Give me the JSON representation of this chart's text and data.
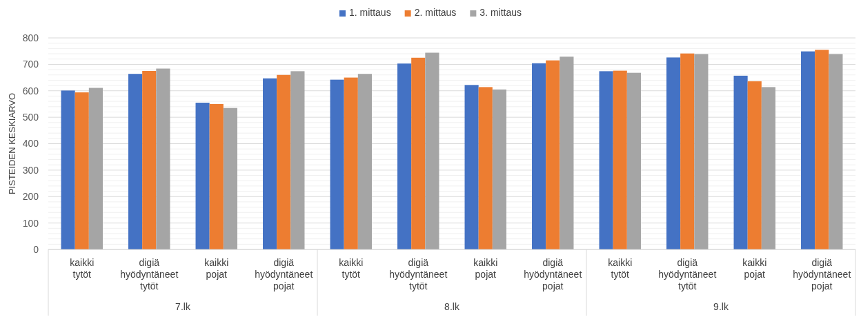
{
  "chart_data": {
    "type": "bar",
    "ylabel": "PISTEIDEN KESKIARVO",
    "categories": [
      "kaikki tytöt",
      "digiä hyödyntäneet tytöt",
      "kaikki pojat",
      "digiä hyödyntäneet pojat",
      "kaikki tytöt",
      "digiä hyödyntäneet tytöt",
      "kaikki pojat",
      "digiä hyödyntäneet pojat",
      "kaikki tytöt",
      "digiä hyödyntäneet tytöt",
      "kaikki pojat",
      "digiä hyödyntäneet pojat"
    ],
    "series": [
      {
        "name": "1. mittaus",
        "color": "#4472c4",
        "values": [
          601,
          664,
          555,
          647,
          642,
          703,
          622,
          704,
          674,
          726,
          657,
          749
        ]
      },
      {
        "name": "2. mittaus",
        "color": "#ed7d31",
        "values": [
          594,
          675,
          550,
          660,
          650,
          725,
          614,
          715,
          676,
          741,
          636,
          755
        ]
      },
      {
        "name": "3. mittaus",
        "color": "#a5a5a5",
        "values": [
          611,
          684,
          535,
          674,
          664,
          744,
          605,
          729,
          668,
          739,
          614,
          739
        ]
      }
    ],
    "annotations": [
      "7.lk",
      "8.lk",
      "9.lk"
    ],
    "ylim": [
      0,
      800
    ],
    "yticks": [
      0,
      {
        "value": 20,
        "label": null
      },
      {
        "value": 40,
        "label": null
      },
      {
        "value": 60,
        "label": null
      },
      {
        "value": 80,
        "label": null
      },
      100,
      {
        "value": 120,
        "label": null
      },
      {
        "value": 140,
        "label": null
      },
      {
        "value": 160,
        "label": null
      },
      {
        "value": 180,
        "label": null
      },
      200,
      {
        "value": 220,
        "label": null
      },
      {
        "value": 240,
        "label": null
      },
      {
        "value": 260,
        "label": null
      },
      {
        "value": 280,
        "label": null
      },
      300,
      {
        "value": 320,
        "label": null
      },
      {
        "value": 340,
        "label": null
      },
      {
        "value": 360,
        "label": null
      },
      {
        "value": 380,
        "label": null
      },
      400,
      {
        "value": 420,
        "label": null
      },
      {
        "value": 440,
        "label": null
      },
      {
        "value": 460,
        "label": null
      },
      {
        "value": 480,
        "label": null
      },
      500,
      {
        "value": 520,
        "label": null
      },
      {
        "value": 540,
        "label": null
      },
      {
        "value": 560,
        "label": null
      },
      {
        "value": 580,
        "label": null
      },
      600,
      {
        "value": 620,
        "label": null
      },
      {
        "value": 640,
        "label": null
      },
      {
        "value": 660,
        "label": null
      },
      {
        "value": 680,
        "label": null
      },
      700,
      {
        "value": 720,
        "label": null
      },
      {
        "value": 740,
        "label": null
      },
      {
        "value": 760,
        "label": null
      },
      {
        "value": 780,
        "label": null
      },
      800
    ],
    "grid": true,
    "legend": "top"
  }
}
